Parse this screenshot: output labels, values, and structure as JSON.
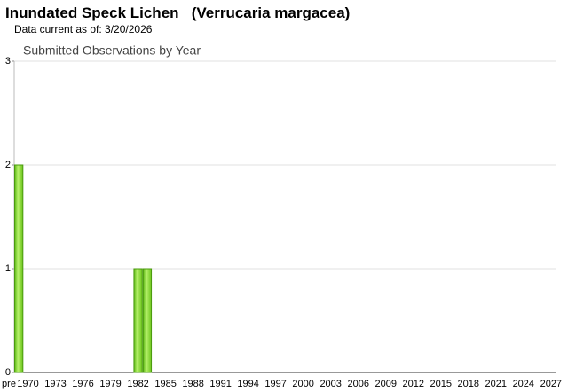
{
  "header": {
    "title": "Inundated Speck Lichen   (Verrucaria margacea)",
    "subtitle": "Data current as of: 3/20/2026"
  },
  "chart_data": {
    "type": "bar",
    "title": "Submitted Observations by Year",
    "categories": [
      "pre",
      "1970",
      null,
      null,
      "1973",
      null,
      null,
      "1976",
      null,
      null,
      "1979",
      null,
      null,
      "1982",
      null,
      null,
      "1985",
      null,
      null,
      "1988",
      null,
      null,
      "1991",
      null,
      null,
      "1994",
      null,
      null,
      "1997",
      null,
      null,
      "2000",
      null,
      null,
      "2003",
      null,
      null,
      "2006",
      null,
      null,
      "2009",
      null,
      null,
      "2012",
      null,
      null,
      "2015",
      null,
      null,
      "2018",
      null,
      null,
      "2021",
      null,
      null,
      "2024",
      null,
      null,
      "2027"
    ],
    "values": [
      2,
      0,
      0,
      0,
      0,
      0,
      0,
      0,
      0,
      0,
      0,
      0,
      0,
      1,
      1,
      0,
      0,
      0,
      0,
      0,
      0,
      0,
      0,
      0,
      0,
      0,
      0,
      0,
      0,
      0,
      0,
      0,
      0,
      0,
      0,
      0,
      0,
      0,
      0,
      0,
      0,
      0,
      0,
      0,
      0,
      0,
      0,
      0,
      0,
      0,
      0,
      0,
      0,
      0,
      0,
      0,
      0,
      0,
      0
    ],
    "color": "#7ed321",
    "ylim": [
      0,
      3
    ],
    "yticks": [
      0,
      1,
      2,
      3
    ],
    "grid": true
  }
}
